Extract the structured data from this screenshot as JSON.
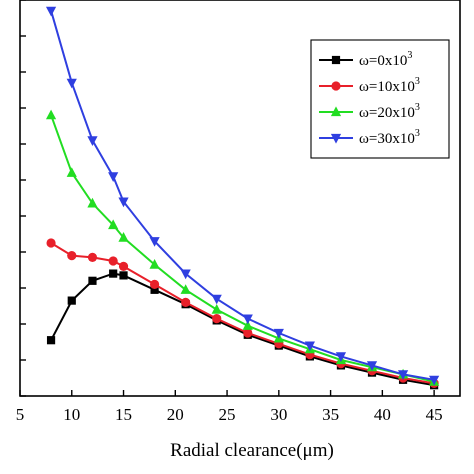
{
  "chart_data": {
    "type": "line",
    "title": "",
    "xlabel": "Radial clearance(μm)",
    "ylabel": "",
    "x": [
      8,
      10,
      12,
      14,
      15,
      18,
      21,
      24,
      27,
      30,
      33,
      36,
      39,
      42,
      45
    ],
    "xlim": [
      5,
      47.5
    ],
    "ylim": [
      0,
      11
    ],
    "xticks": [
      "5",
      "10",
      "15",
      "20",
      "25",
      "30",
      "35",
      "40",
      "45"
    ],
    "xtick_values": [
      5,
      10,
      15,
      20,
      25,
      30,
      35,
      40,
      45
    ],
    "ytick_values": [
      0,
      1,
      2,
      3,
      4,
      5,
      6,
      7,
      8,
      9,
      10,
      11
    ],
    "grid": false,
    "legend_placement": "top-right",
    "series": [
      {
        "name": "ω=0x10",
        "sup": "3",
        "color": "#000000",
        "marker": "square",
        "values": [
          1.55,
          2.65,
          3.2,
          3.4,
          3.35,
          2.95,
          2.55,
          2.1,
          1.7,
          1.4,
          1.1,
          0.85,
          0.65,
          0.45,
          0.3
        ]
      },
      {
        "name": "ω=10x10",
        "sup": "3",
        "color": "#e8202a",
        "marker": "circle",
        "values": [
          4.25,
          3.9,
          3.85,
          3.75,
          3.6,
          3.1,
          2.6,
          2.15,
          1.75,
          1.45,
          1.15,
          0.9,
          0.7,
          0.5,
          0.35
        ]
      },
      {
        "name": "ω=20x10",
        "sup": "3",
        "color": "#22dd22",
        "marker": "triangle-up",
        "values": [
          7.8,
          6.2,
          5.35,
          4.75,
          4.4,
          3.65,
          2.95,
          2.4,
          1.95,
          1.6,
          1.3,
          1.0,
          0.8,
          0.6,
          0.4
        ]
      },
      {
        "name": "ω=30x10",
        "sup": "3",
        "color": "#2f3fe0",
        "marker": "triangle-down",
        "values": [
          10.7,
          8.7,
          7.1,
          6.1,
          5.4,
          4.3,
          3.4,
          2.7,
          2.15,
          1.75,
          1.4,
          1.1,
          0.85,
          0.6,
          0.45
        ]
      }
    ]
  }
}
